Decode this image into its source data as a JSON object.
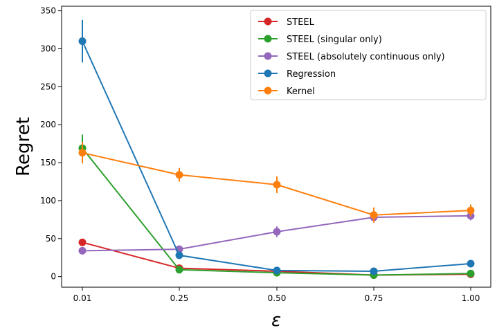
{
  "chart_data": {
    "type": "line",
    "title": "",
    "xlabel": "ε",
    "ylabel": "Regret",
    "x": [
      0.01,
      0.25,
      0.5,
      0.75,
      1.0
    ],
    "x_tick_labels": [
      "0.01",
      "0.25",
      "0.50",
      "0.75",
      "1.00"
    ],
    "y_ticks": [
      0,
      50,
      100,
      150,
      200,
      250,
      300,
      350
    ],
    "y_tick_labels": [
      "0",
      "50",
      "100",
      "150",
      "200",
      "250",
      "300",
      "350"
    ],
    "ylim": [
      -14,
      356
    ],
    "grid": false,
    "legend_position": "top-right",
    "series": [
      {
        "name": "STEEL",
        "color": "#d62728",
        "values": [
          45,
          11,
          7,
          2,
          3
        ],
        "errors": [
          4,
          2,
          1,
          1,
          1
        ]
      },
      {
        "name": "STEEL (singular only)",
        "color": "#2ca02c",
        "values": [
          169,
          9,
          5,
          2,
          4
        ],
        "errors": [
          18,
          1,
          1,
          1,
          1
        ]
      },
      {
        "name": "STEEL (absolutely continuous only)",
        "color": "#9467bd",
        "values": [
          34,
          36,
          59,
          78,
          80
        ],
        "errors": [
          2,
          3,
          7,
          5,
          6
        ]
      },
      {
        "name": "Regression",
        "color": "#1f77b4",
        "values": [
          310,
          28,
          8,
          7,
          17
        ],
        "errors": [
          28,
          2,
          1,
          1,
          1
        ]
      },
      {
        "name": "Kernel",
        "color": "#ff7f0e",
        "values": [
          163,
          134,
          121,
          81,
          87
        ],
        "errors": [
          14,
          9,
          11,
          10,
          8
        ]
      }
    ]
  }
}
